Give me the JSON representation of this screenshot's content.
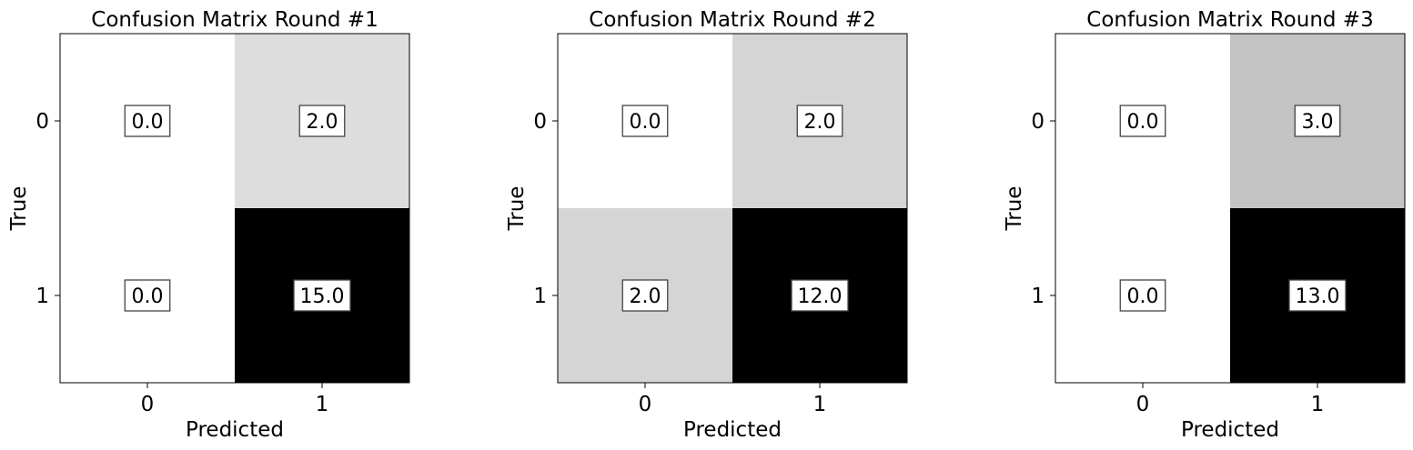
{
  "chart_data": [
    {
      "type": "heatmap",
      "title": "Confusion Matrix Round #1",
      "xlabel": "Predicted",
      "ylabel": "True",
      "x_categories": [
        "0",
        "1"
      ],
      "y_categories": [
        "0",
        "1"
      ],
      "values": [
        [
          0.0,
          2.0
        ],
        [
          0.0,
          15.0
        ]
      ],
      "value_labels": [
        [
          "0.0",
          "2.0"
        ],
        [
          "0.0",
          "15.0"
        ]
      ],
      "colormap": "gray_r",
      "grid": false
    },
    {
      "type": "heatmap",
      "title": "Confusion Matrix Round #2",
      "xlabel": "Predicted",
      "ylabel": "True",
      "x_categories": [
        "0",
        "1"
      ],
      "y_categories": [
        "0",
        "1"
      ],
      "values": [
        [
          0.0,
          2.0
        ],
        [
          2.0,
          12.0
        ]
      ],
      "value_labels": [
        [
          "0.0",
          "2.0"
        ],
        [
          "2.0",
          "12.0"
        ]
      ],
      "colormap": "gray_r",
      "grid": false
    },
    {
      "type": "heatmap",
      "title": "Confusion Matrix Round #3",
      "xlabel": "Predicted",
      "ylabel": "True",
      "x_categories": [
        "0",
        "1"
      ],
      "y_categories": [
        "0",
        "1"
      ],
      "values": [
        [
          0.0,
          3.0
        ],
        [
          0.0,
          13.0
        ]
      ],
      "value_labels": [
        [
          "0.0",
          "3.0"
        ],
        [
          "0.0",
          "13.0"
        ]
      ],
      "colormap": "gray_r",
      "grid": false
    }
  ]
}
